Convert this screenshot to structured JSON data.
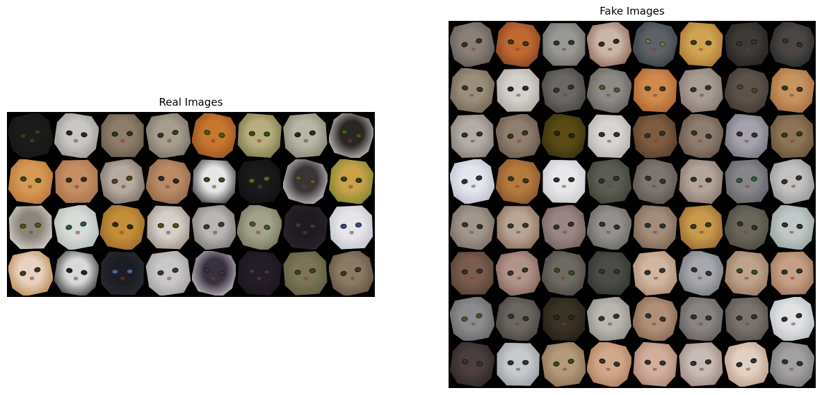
{
  "real": {
    "title": "Real Images",
    "rows": 4,
    "cols": 8,
    "tiles": [
      [
        "#1b1b1b",
        "#151515",
        "#3a3d1c"
      ],
      [
        "#c9c7c4",
        "#8f8c88",
        "#2a2a2a"
      ],
      [
        "#8e7d6a",
        "#5e5246",
        "#2c3b1e"
      ],
      [
        "#a89e90",
        "#6f675c",
        "#3a3a20"
      ],
      [
        "#c9772f",
        "#8a4a1d",
        "#4e5a18"
      ],
      [
        "#b9ae7e",
        "#6d6b3d",
        "#3d4a1a"
      ],
      [
        "#b8b6a6",
        "#7a7a66",
        "#2a2a2a"
      ],
      [
        "#2a2624",
        "#e7e4e0",
        "#4a5a1f"
      ],
      [
        "#d79a55",
        "#b36f35",
        "#3f4a1d"
      ],
      [
        "#c68e64",
        "#a06a44",
        "#3a2d20"
      ],
      [
        "#b7aaa0",
        "#6e625a",
        "#4b4a1c"
      ],
      [
        "#b98b66",
        "#8a5f41",
        "#2f2a22"
      ],
      [
        "#e6e6e6",
        "#1c1c1c",
        "#3a4a20"
      ],
      [
        "#1a1a1c",
        "#0e0e10",
        "#5e6a20"
      ],
      [
        "#3a3436",
        "#e5e2e2",
        "#56601f"
      ],
      [
        "#c9a24a",
        "#6f7d2c",
        "#3a3a1c"
      ],
      [
        "#8c857b",
        "#e3e1dd",
        "#4f5a1f"
      ],
      [
        "#d8dcd8",
        "#a9b1ad",
        "#2b5a4a"
      ],
      [
        "#c58f3a",
        "#8e6326",
        "#3a2a14"
      ],
      [
        "#d5cfc9",
        "#8d8176",
        "#57501d"
      ],
      [
        "#b9b6b4",
        "#6c6866",
        "#3a3a3a"
      ],
      [
        "#a3a28a",
        "#6a6a52",
        "#4a5a1f"
      ],
      [
        "#1e1a20",
        "#2c2630",
        "#3a3a3a"
      ],
      [
        "#e6e6ea",
        "#b9bcc6",
        "#3a4a7a"
      ],
      [
        "#e7d3c0",
        "#b27b3c",
        "#3a3a2a"
      ],
      [
        "#d8d8d8",
        "#1a1a1a",
        "#222222"
      ],
      [
        "#1c1d22",
        "#2c2e36",
        "#4a6a9a"
      ],
      [
        "#c9c7c9",
        "#9b9597",
        "#3a3a3a"
      ],
      [
        "#3a3140",
        "#e0dce4",
        "#3a3a3a"
      ],
      [
        "#241c26",
        "#1a141c",
        "#3a3a3a"
      ],
      [
        "#7b7456",
        "#5a563c",
        "#3c4a1e"
      ],
      [
        "#8b7a64",
        "#574a3c",
        "#3a3a22"
      ]
    ]
  },
  "fake": {
    "title": "Fake Images",
    "rows": 8,
    "cols": 8,
    "tiles": [
      [
        "#8a7f77",
        "#55504c",
        "#333"
      ],
      [
        "#c06a32",
        "#7a3c1c",
        "#3a3a20"
      ],
      [
        "#9a9894",
        "#64625e",
        "#333"
      ],
      [
        "#c9b6a8",
        "#845a48",
        "#3a2a22"
      ],
      [
        "#5e6266",
        "#30363a",
        "#6a7a4a"
      ],
      [
        "#d1a454",
        "#a06e2a",
        "#3a3a20"
      ],
      [
        "#3e3a36",
        "#1e1c1a",
        "#333"
      ],
      [
        "#4a4644",
        "#222",
        "#333"
      ],
      [
        "#9c8e7c",
        "#6a5c4c",
        "#3a3a22"
      ],
      [
        "#d4d0cc",
        "#a09c98",
        "#2a2a2a"
      ],
      [
        "#6a6764",
        "#3e3c3a",
        "#333"
      ],
      [
        "#8e8a86",
        "#5a5652",
        "#4a5a2a"
      ],
      [
        "#d08a4c",
        "#a25a2c",
        "#3a3a20"
      ],
      [
        "#a89c94",
        "#7a6e66",
        "#333"
      ],
      [
        "#5c524a",
        "#3a322c",
        "#4a4a20"
      ],
      [
        "#c7935e",
        "#9a663c",
        "#3a3a22"
      ],
      [
        "#b3aca6",
        "#78716b",
        "#333"
      ],
      [
        "#907e6e",
        "#5e4e42",
        "#3a3a22"
      ],
      [
        "#5a4a14",
        "#2e2a10",
        "#2a2a10"
      ],
      [
        "#d8d4d0",
        "#a8a4a0",
        "#333"
      ],
      [
        "#7e5c40",
        "#4e3624",
        "#333"
      ],
      [
        "#8e7c6e",
        "#5c4c40",
        "#333"
      ],
      [
        "#a5a2ac",
        "#6a6872",
        "#333"
      ],
      [
        "#8c7456",
        "#5c4a34",
        "#3a3a22"
      ],
      [
        "#e4e6ee",
        "#b2b6c2",
        "#333"
      ],
      [
        "#b67a3e",
        "#7a4e28",
        "#3a3a20"
      ],
      [
        "#e8e8ea",
        "#c0c0c6",
        "#333"
      ],
      [
        "#5a5e52",
        "#363a30",
        "#333"
      ],
      [
        "#7e7470",
        "#524a46",
        "#333"
      ],
      [
        "#b4a49a",
        "#7e6c62",
        "#333"
      ],
      [
        "#86868a",
        "#56565c",
        "#3a5a3a"
      ],
      [
        "#c4c2c0",
        "#8a8886",
        "#333"
      ],
      [
        "#a2968c",
        "#6e645c",
        "#333"
      ],
      [
        "#b9a596",
        "#7e5e4a",
        "#3a3a22"
      ],
      [
        "#9a8682",
        "#6a5854",
        "#333"
      ],
      [
        "#94918c",
        "#5c5a56",
        "#333"
      ],
      [
        "#a48c7a",
        "#6c5a4c",
        "#333"
      ],
      [
        "#c99a4c",
        "#8a5e2c",
        "#3a3a20"
      ],
      [
        "#6a665a",
        "#444036",
        "#333"
      ],
      [
        "#c0c8c8",
        "#8e9696",
        "#333"
      ],
      [
        "#7a5c4c",
        "#4c3a30",
        "#333"
      ],
      [
        "#b0948a",
        "#7a5a52",
        "#333"
      ],
      [
        "#6e6a62",
        "#44403a",
        "#3a4a22"
      ],
      [
        "#4a4c46",
        "#2c2e2a",
        "#333"
      ],
      [
        "#d2b6a0",
        "#a2826c",
        "#333"
      ],
      [
        "#a6a8ae",
        "#6c6e74",
        "#333"
      ],
      [
        "#bfa28a",
        "#8a6e58",
        "#3a4a22"
      ],
      [
        "#c6a086",
        "#8e6a52",
        "#333"
      ],
      [
        "#8c8c8e",
        "#5c5c5e",
        "#4a5a2a"
      ],
      [
        "#6c6660",
        "#3e3a36",
        "#333"
      ],
      [
        "#3a3224",
        "#1e1a12",
        "#2a2a10"
      ],
      [
        "#bab6b0",
        "#86827c",
        "#333"
      ],
      [
        "#b29078",
        "#7a5c48",
        "#333"
      ],
      [
        "#8a8482",
        "#5a5452",
        "#333"
      ],
      [
        "#7a726c",
        "#4e4842",
        "#333"
      ],
      [
        "#e0e2e4",
        "#b0b4b8",
        "#333"
      ],
      [
        "#4a3e3e",
        "#262020",
        "#333"
      ],
      [
        "#c6cace",
        "#8e9296",
        "#333"
      ],
      [
        "#b49a7a",
        "#7e6648",
        "#3a4a22"
      ],
      [
        "#d2a88a",
        "#a27656",
        "#333"
      ],
      [
        "#d2ae9c",
        "#a27c6a",
        "#333"
      ],
      [
        "#c8bab4",
        "#947a74",
        "#333"
      ],
      [
        "#e2d0c2",
        "#b08e7a",
        "#333"
      ],
      [
        "#a2a0a0",
        "#6e6c6c",
        "#333"
      ]
    ]
  }
}
